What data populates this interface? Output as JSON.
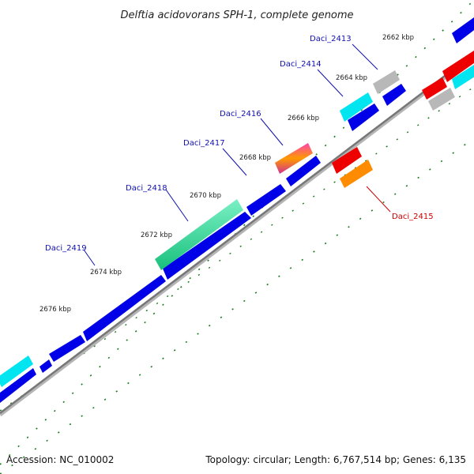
{
  "title": "Delftia acidovorans SPH-1, complete genome",
  "footer": {
    "accession": "Accession: NC_010002",
    "summary": "Topology: circular; Length: 6,767,514 bp; Genes: 6,135"
  },
  "kbp_labels": [
    "2662 kbp",
    "2664 kbp",
    "2666 kbp",
    "2668 kbp",
    "2670 kbp",
    "2672 kbp",
    "2674 kbp",
    "2676 kbp"
  ],
  "gene_labels": {
    "daci_2413": "Daci_2413",
    "daci_2414": "Daci_2414",
    "daci_2415": "Daci_2415",
    "daci_2416": "Daci_2416",
    "daci_2417": "Daci_2417",
    "daci_2418": "Daci_2418",
    "daci_2419": "Daci_2419"
  },
  "colors": {
    "forward_cds": "#0000e8",
    "rna": "#00e5f0",
    "other_feature": "#b8b8b8",
    "reverse_red": "#ee0000",
    "reverse_orange": "#ff8c00",
    "highlight_green": "#30e0a0",
    "highlight_magenta": "#d03090",
    "backbone": "#888888",
    "ticks": "#1a7a1a"
  }
}
